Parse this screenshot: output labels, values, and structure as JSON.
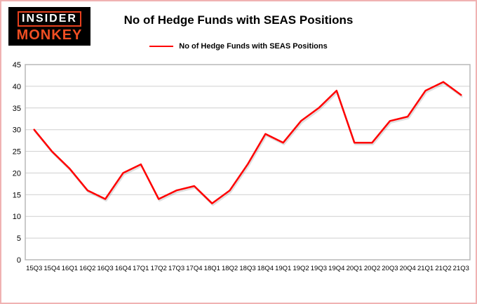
{
  "logo": {
    "line1": "INSIDER",
    "line2": "MONKEY"
  },
  "header": {
    "title": "No of Hedge Funds with SEAS Positions"
  },
  "legend": {
    "label": "No of Hedge Funds with SEAS Positions",
    "color": "#ff0000"
  },
  "chart_data": {
    "type": "line",
    "title": "No of Hedge Funds with SEAS Positions",
    "series_name": "No of Hedge Funds with SEAS Positions",
    "categories": [
      "15Q3",
      "15Q4",
      "16Q1",
      "16Q2",
      "16Q3",
      "16Q4",
      "17Q1",
      "17Q2",
      "17Q3",
      "17Q4",
      "18Q1",
      "18Q2",
      "18Q3",
      "18Q4",
      "19Q1",
      "19Q2",
      "19Q3",
      "19Q4",
      "20Q1",
      "20Q2",
      "20Q3",
      "20Q4",
      "21Q1",
      "21Q2",
      "21Q3"
    ],
    "values": [
      30,
      25,
      21,
      16,
      14,
      20,
      22,
      14,
      16,
      17,
      13,
      16,
      22,
      29,
      27,
      32,
      35,
      39,
      27,
      27,
      32,
      33,
      39,
      41,
      38
    ],
    "xlabel": "",
    "ylabel": "",
    "ylim": [
      0,
      45
    ],
    "ytick_interval": 5,
    "grid": true,
    "line_color": "#ff0000",
    "gridline_color": "#cfcfcf",
    "border_color": "#b8b8b8",
    "legend_position": "top-center"
  }
}
